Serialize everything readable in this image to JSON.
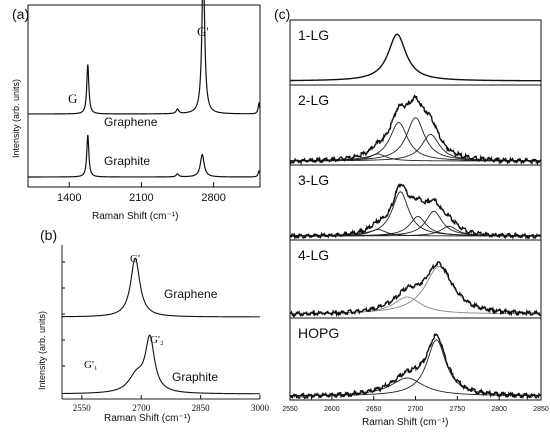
{
  "chart_data": [
    {
      "id": "a",
      "type": "line",
      "panel_label": "(a)",
      "xlabel": "Raman Shift (cm⁻¹)",
      "ylabel": "Intensity (arb. units)",
      "xlim": [
        1000,
        3250
      ],
      "xticks": [
        1400,
        2100,
        2800
      ],
      "series": [
        {
          "name": "Graphene",
          "baseline": 0.42,
          "peaks": [
            {
              "label": "G",
              "x": 1580,
              "height": 0.33,
              "width": 12
            },
            {
              "x": 2450,
              "height": 0.03,
              "width": 15
            },
            {
              "label": "G'",
              "x": 2700,
              "height": 1.0,
              "width": 16
            },
            {
              "x": 3240,
              "height": 0.07,
              "width": 10
            }
          ]
        },
        {
          "name": "Graphite",
          "baseline": 0.0,
          "peaks": [
            {
              "x": 1580,
              "height": 0.28,
              "width": 12
            },
            {
              "x": 2450,
              "height": 0.02,
              "width": 15
            },
            {
              "x": 2690,
              "height": 0.15,
              "width": 22
            },
            {
              "x": 3240,
              "height": 0.04,
              "width": 10
            }
          ]
        }
      ]
    },
    {
      "id": "b",
      "type": "line",
      "panel_label": "(b)",
      "xlabel": "Raman Shift (cm⁻¹)",
      "ylabel": "Intensity (arb. units)",
      "xlim": [
        2500,
        3000
      ],
      "xticks": [
        2550,
        2700,
        2850,
        3000
      ],
      "series": [
        {
          "name": "Graphene",
          "label": "G'",
          "baseline": 0.55,
          "peaks": [
            {
              "x": 2685,
              "height": 0.42,
              "width": 14
            }
          ]
        },
        {
          "name": "Graphite",
          "baseline": 0.0,
          "peaks": [
            {
              "label": "G'₁",
              "x": 2688,
              "height": 0.12,
              "width": 24
            },
            {
              "label": "G'₂",
              "x": 2722,
              "height": 0.38,
              "width": 14
            }
          ]
        }
      ]
    },
    {
      "id": "c",
      "type": "line",
      "panel_label": "(c)",
      "xlabel": "Raman Shift (cm⁻¹)",
      "xlim": [
        2550,
        2850
      ],
      "xticks": [
        2550,
        2600,
        2650,
        2700,
        2750,
        2800,
        2850
      ],
      "panels": [
        {
          "label": "1-LG",
          "components": [
            {
              "x": 2678,
              "height": 0.85,
              "width": 13
            }
          ]
        },
        {
          "label": "2-LG",
          "components": [
            {
              "x": 2655,
              "height": 0.1,
              "width": 12
            },
            {
              "x": 2680,
              "height": 0.55,
              "width": 13
            },
            {
              "x": 2700,
              "height": 0.62,
              "width": 13
            },
            {
              "x": 2718,
              "height": 0.38,
              "width": 13
            }
          ]
        },
        {
          "label": "3-LG",
          "components": [
            {
              "x": 2655,
              "height": 0.1,
              "width": 12
            },
            {
              "x": 2682,
              "height": 0.68,
              "width": 12
            },
            {
              "x": 2703,
              "height": 0.3,
              "width": 12
            },
            {
              "x": 2722,
              "height": 0.38,
              "width": 12
            },
            {
              "x": 2740,
              "height": 0.15,
              "width": 12
            }
          ]
        },
        {
          "label": "4-LG",
          "components": [
            {
              "x": 2690,
              "height": 0.25,
              "width": 20
            },
            {
              "x": 2728,
              "height": 0.7,
              "width": 20
            }
          ]
        },
        {
          "label": "HOPG",
          "components": [
            {
              "x": 2690,
              "height": 0.25,
              "width": 24
            },
            {
              "x": 2725,
              "height": 0.78,
              "width": 14
            }
          ]
        }
      ]
    }
  ],
  "labels": {
    "panel_a": "(a)",
    "panel_b": "(b)",
    "panel_c": "(c)",
    "a_graphene": "Graphene",
    "a_graphite": "Graphite",
    "a_G": "G",
    "a_Gprime": "G'",
    "b_graphene": "Graphene",
    "b_graphite": "Graphite",
    "b_Gprime": "G'",
    "b_G1": "G'₁",
    "b_G2": "G'₂",
    "xlabel": "Raman Shift (cm⁻¹)",
    "ylabel": "Intensity (arb. units)"
  }
}
